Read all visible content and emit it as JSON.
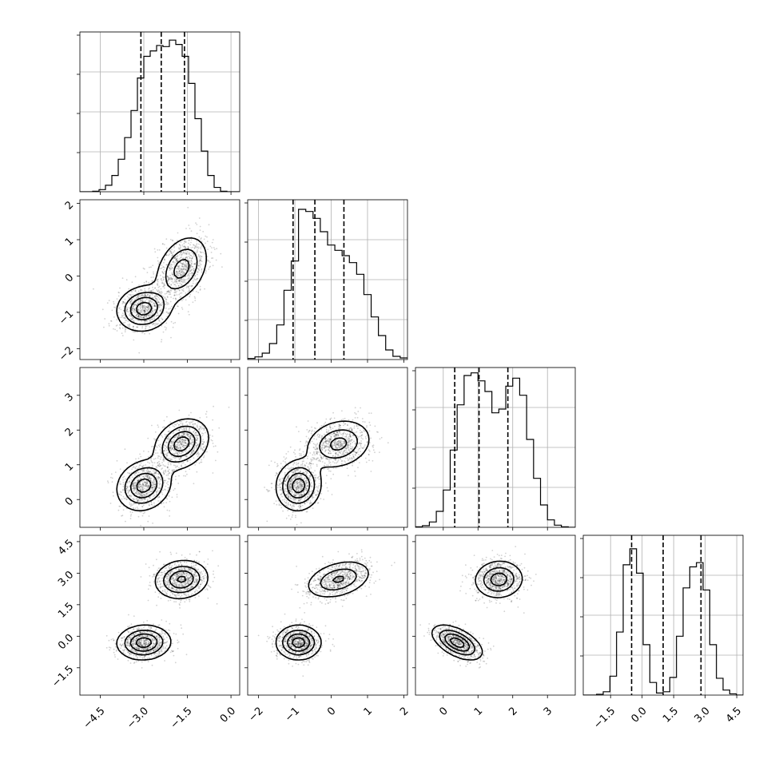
{
  "chart_data": {
    "type": "corner",
    "variables": [
      {
        "lim": [
          -5.2,
          0.3
        ],
        "ticks": [
          -4.5,
          -3.0,
          -1.5,
          0.0
        ],
        "tick_labels": [
          "−4.5",
          "−3.0",
          "−1.5",
          "0.0"
        ],
        "quantiles": [
          -3.1,
          -2.4,
          -1.6
        ],
        "hist": {
          "edges_start": -5.2,
          "edges_end": 0.3,
          "counts": [
            0,
            0,
            1,
            4,
            12,
            30,
            60,
            100,
            150,
            210,
            250,
            260,
            270,
            268,
            280,
            272,
            250,
            200,
            135,
            75,
            30,
            8,
            1,
            0,
            0
          ],
          "ymax": 295
        }
      },
      {
        "lim": [
          -2.3,
          2.1
        ],
        "ticks": [
          -2,
          -1,
          0,
          1,
          2
        ],
        "tick_labels": [
          "−2",
          "−1",
          "0",
          "1",
          "2"
        ],
        "quantiles": [
          -1.05,
          -0.45,
          0.35
        ],
        "hist": {
          "edges_start": -2.3,
          "edges_end": 2.1,
          "counts": [
            2,
            5,
            12,
            30,
            65,
            130,
            185,
            282,
            278,
            265,
            240,
            215,
            205,
            195,
            182,
            160,
            122,
            80,
            45,
            18,
            6,
            3
          ],
          "ymax": 300
        }
      },
      {
        "lim": [
          -0.8,
          3.8
        ],
        "ticks": [
          0,
          1,
          2,
          3
        ],
        "tick_labels": [
          "0",
          "1",
          "2",
          "3"
        ],
        "quantiles": [
          0.33,
          1.03,
          1.86
        ],
        "hist": {
          "edges_start": -0.8,
          "edges_end": 3.8,
          "counts": [
            1,
            3,
            10,
            30,
            70,
            145,
            230,
            285,
            290,
            275,
            255,
            215,
            222,
            265,
            280,
            248,
            165,
            92,
            42,
            14,
            4,
            1,
            0
          ],
          "ymax": 300
        }
      },
      {
        "lim": [
          -2.8,
          4.8
        ],
        "ticks": [
          -1.5,
          0.0,
          1.5,
          3.0,
          4.5
        ],
        "tick_labels": [
          "−1.5",
          "0.0",
          "1.5",
          "3.0",
          "4.5"
        ],
        "quantiles": [
          -0.5,
          1.0,
          2.8
        ],
        "hist": {
          "edges_start": -2.8,
          "edges_end": 4.8,
          "counts": [
            0,
            0,
            2,
            8,
            45,
            150,
            310,
            348,
            290,
            120,
            30,
            5,
            8,
            42,
            140,
            255,
            305,
            315,
            250,
            120,
            40,
            12,
            3,
            0
          ],
          "ymax": 380
        }
      }
    ],
    "modes": [
      {
        "weight": 0.5,
        "mean": [
          -3.0,
          -0.9,
          0.4,
          -0.3
        ],
        "std": [
          0.45,
          0.3,
          0.35,
          0.4
        ]
      },
      {
        "weight": 0.5,
        "mean": [
          -1.7,
          0.2,
          1.6,
          2.7
        ],
        "std": [
          0.45,
          0.45,
          0.35,
          0.45
        ]
      }
    ],
    "correlations": {
      "0-1": [
        0.1,
        0.35
      ],
      "0-2": [
        0.15,
        0.25
      ],
      "0-3": [
        0.05,
        0.1
      ],
      "1-2": [
        0.05,
        0.2
      ],
      "1-3": [
        0.0,
        0.35
      ],
      "2-3": [
        -0.55,
        0.05
      ]
    },
    "title": "",
    "grid": true,
    "contours": true,
    "scatter_points": true
  }
}
